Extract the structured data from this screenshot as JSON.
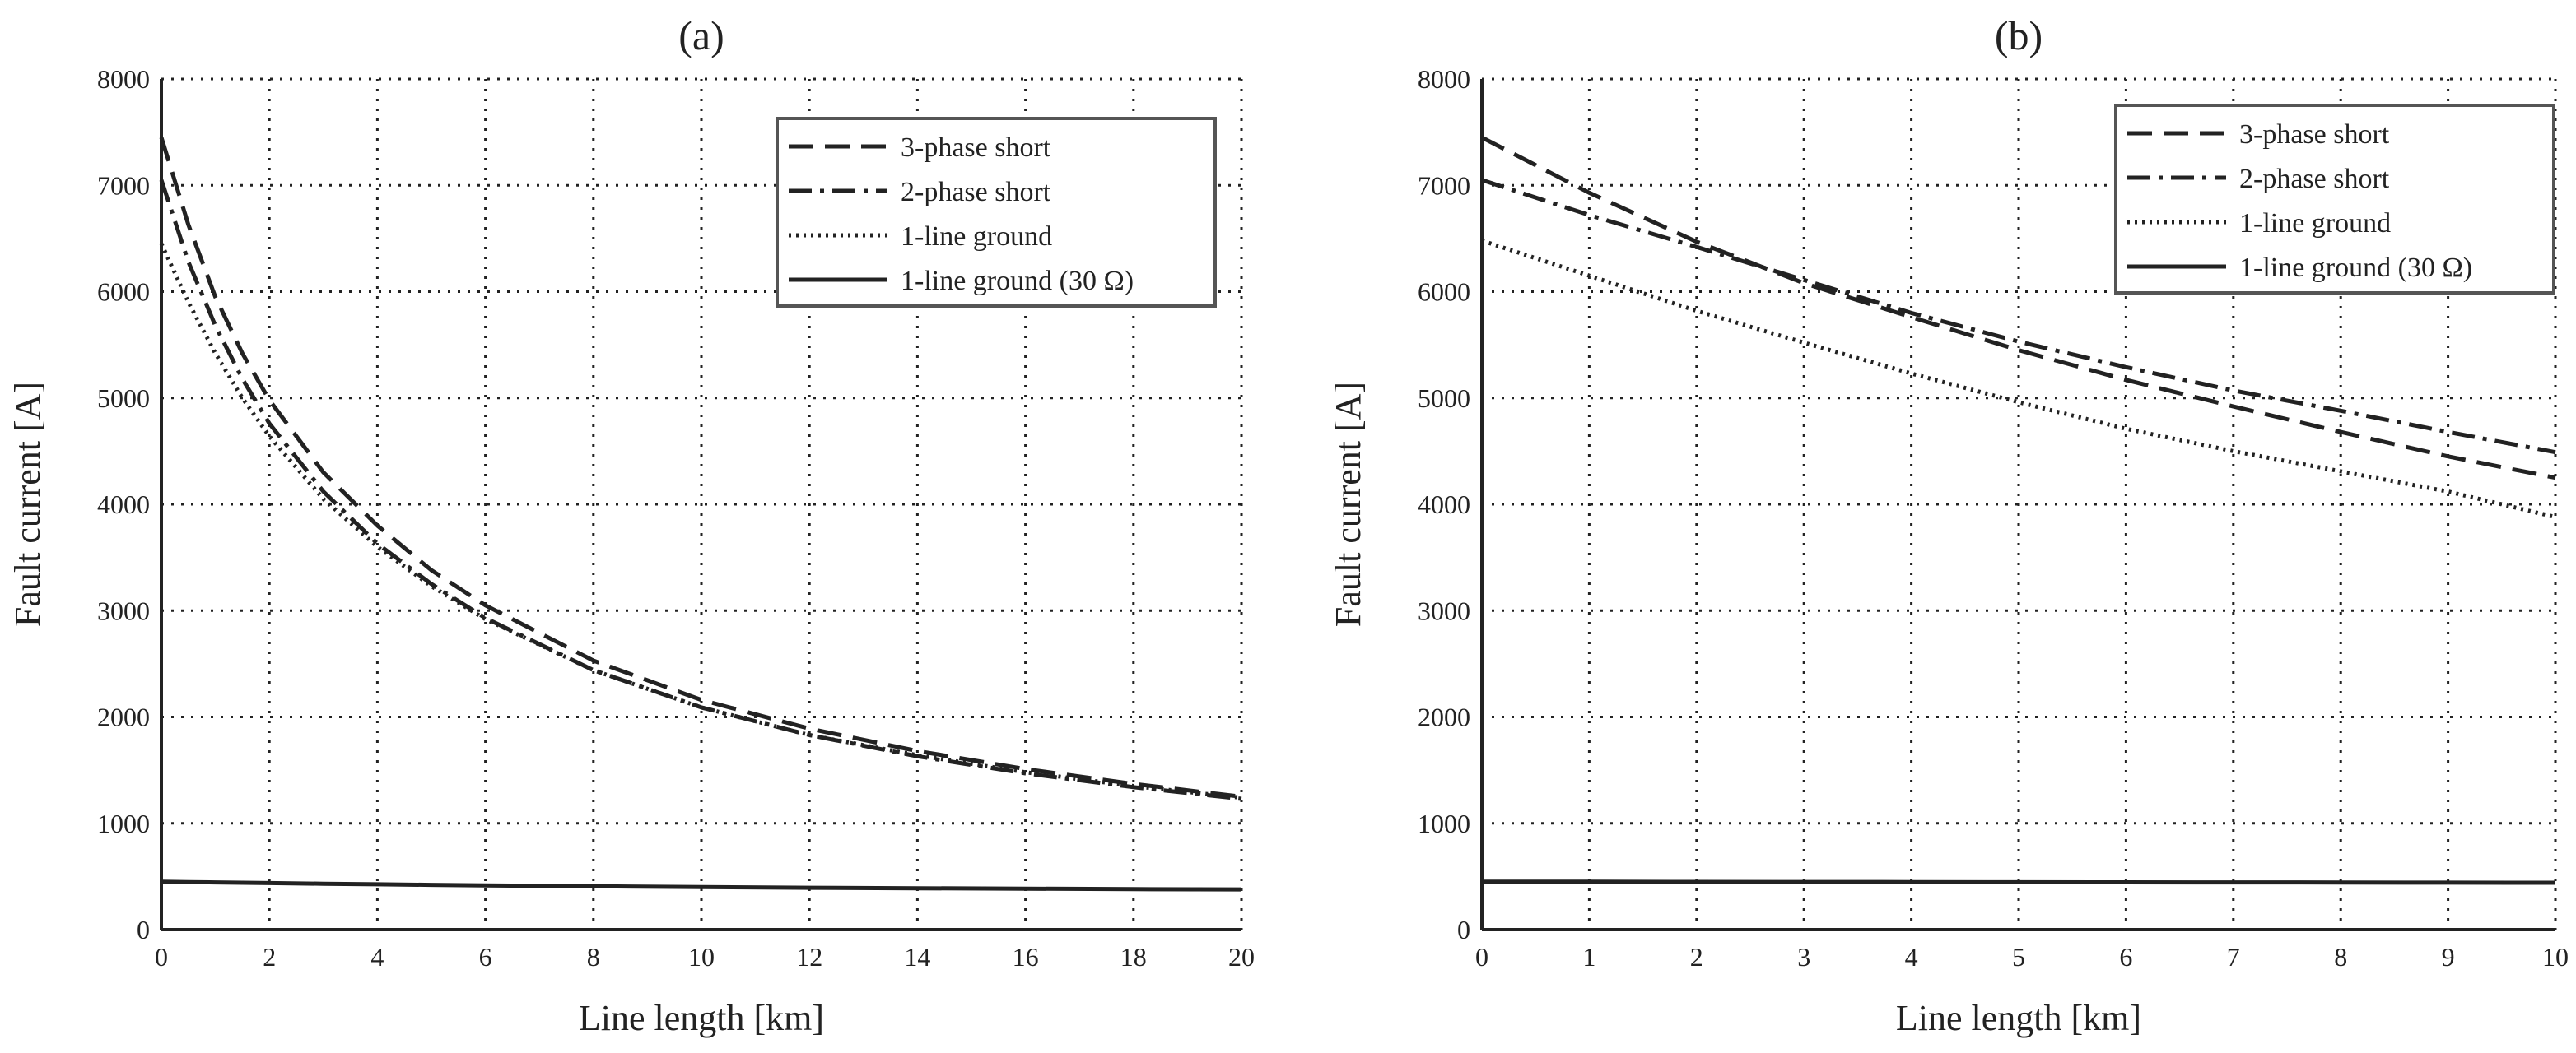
{
  "colors": {
    "ink": "#222222",
    "grid": "#222222",
    "background": "#ffffff",
    "legend_border": "#555555"
  },
  "chart_data": [
    {
      "type": "line",
      "title": "(a)",
      "xlabel": "Line length [km]",
      "ylabel": "Fault current [A]",
      "xlim": [
        0,
        20
      ],
      "ylim": [
        0,
        8000
      ],
      "xticks": [
        "0",
        "2",
        "4",
        "6",
        "8",
        "10",
        "12",
        "14",
        "16",
        "18",
        "20"
      ],
      "yticks": [
        "0",
        "1000",
        "2000",
        "3000",
        "4000",
        "5000",
        "6000",
        "7000",
        "8000"
      ],
      "grid": true,
      "legend_position": "top-right",
      "x": [
        0,
        0.5,
        1,
        1.5,
        2,
        3,
        4,
        5,
        6,
        8,
        10,
        12,
        14,
        16,
        18,
        20
      ],
      "series": [
        {
          "name": "3-phase short",
          "style": "dashed",
          "values": [
            7450,
            6630,
            5950,
            5420,
            4980,
            4300,
            3800,
            3380,
            3050,
            2530,
            2160,
            1890,
            1680,
            1510,
            1370,
            1250
          ]
        },
        {
          "name": "2-phase short",
          "style": "dash-dot",
          "values": [
            7050,
            6280,
            5680,
            5180,
            4760,
            4120,
            3630,
            3250,
            2930,
            2440,
            2090,
            1830,
            1630,
            1470,
            1340,
            1230
          ]
        },
        {
          "name": "1-line ground",
          "style": "dotted",
          "values": [
            6450,
            5900,
            5420,
            5000,
            4640,
            4050,
            3600,
            3230,
            2920,
            2440,
            2090,
            1830,
            1640,
            1480,
            1350,
            1240
          ]
        },
        {
          "name": "1-line ground (30 Ω)",
          "style": "solid",
          "values": [
            450,
            447,
            444,
            441,
            438,
            432,
            426,
            421,
            416,
            408,
            400,
            394,
            389,
            385,
            381,
            378
          ]
        }
      ]
    },
    {
      "type": "line",
      "title": "(b)",
      "xlabel": "Line length [km]",
      "ylabel": "Fault current [A]",
      "xlim": [
        0,
        10
      ],
      "ylim": [
        0,
        8000
      ],
      "xticks": [
        "0",
        "1",
        "2",
        "3",
        "4",
        "5",
        "6",
        "7",
        "8",
        "9",
        "10"
      ],
      "yticks": [
        "0",
        "1000",
        "2000",
        "3000",
        "4000",
        "5000",
        "6000",
        "7000",
        "8000"
      ],
      "grid": true,
      "legend_position": "top-right",
      "x": [
        0,
        1,
        2,
        3,
        4,
        5,
        6,
        7,
        8,
        9,
        10
      ],
      "series": [
        {
          "name": "3-phase short",
          "style": "dashed",
          "values": [
            7450,
            6930,
            6470,
            6080,
            5760,
            5450,
            5170,
            4920,
            4680,
            4450,
            4250
          ]
        },
        {
          "name": "2-phase short",
          "style": "dash-dot",
          "values": [
            7050,
            6720,
            6420,
            6110,
            5800,
            5530,
            5290,
            5070,
            4880,
            4680,
            4490
          ]
        },
        {
          "name": "1-line ground",
          "style": "dotted",
          "values": [
            6480,
            6150,
            5820,
            5520,
            5230,
            4960,
            4710,
            4500,
            4310,
            4120,
            3880
          ]
        },
        {
          "name": "1-line ground (30 Ω)",
          "style": "solid",
          "values": [
            450,
            450,
            449,
            448,
            447,
            446,
            445,
            444,
            443,
            442,
            441
          ]
        }
      ]
    }
  ]
}
